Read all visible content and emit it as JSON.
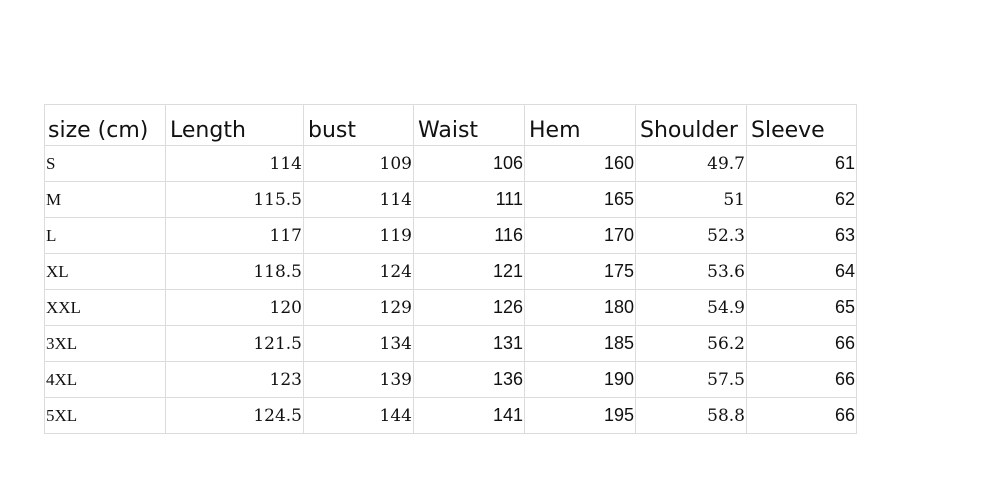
{
  "table": {
    "headers": [
      "size (cm)",
      "Length",
      "bust",
      "Waist",
      "Hem",
      "Shoulder",
      "Sleeve"
    ],
    "rows": [
      {
        "size": "S",
        "length": "114",
        "bust": "109",
        "waist": "106",
        "hem": "160",
        "shoulder": "49.7",
        "sleeve": "61"
      },
      {
        "size": "M",
        "length": "115.5",
        "bust": "114",
        "waist": "111",
        "hem": "165",
        "shoulder": "51",
        "sleeve": "62"
      },
      {
        "size": "L",
        "length": "117",
        "bust": "119",
        "waist": "116",
        "hem": "170",
        "shoulder": "52.3",
        "sleeve": "63"
      },
      {
        "size": "XL",
        "length": "118.5",
        "bust": "124",
        "waist": "121",
        "hem": "175",
        "shoulder": "53.6",
        "sleeve": "64"
      },
      {
        "size": "XXL",
        "length": "120",
        "bust": "129",
        "waist": "126",
        "hem": "180",
        "shoulder": "54.9",
        "sleeve": "65"
      },
      {
        "size": "3XL",
        "length": "121.5",
        "bust": "134",
        "waist": "131",
        "hem": "185",
        "shoulder": "56.2",
        "sleeve": "66"
      },
      {
        "size": "4XL",
        "length": "123",
        "bust": "139",
        "waist": "136",
        "hem": "190",
        "shoulder": "57.5",
        "sleeve": "66"
      },
      {
        "size": "5XL",
        "length": "124.5",
        "bust": "144",
        "waist": "141",
        "hem": "195",
        "shoulder": "58.8",
        "sleeve": "66"
      }
    ]
  }
}
